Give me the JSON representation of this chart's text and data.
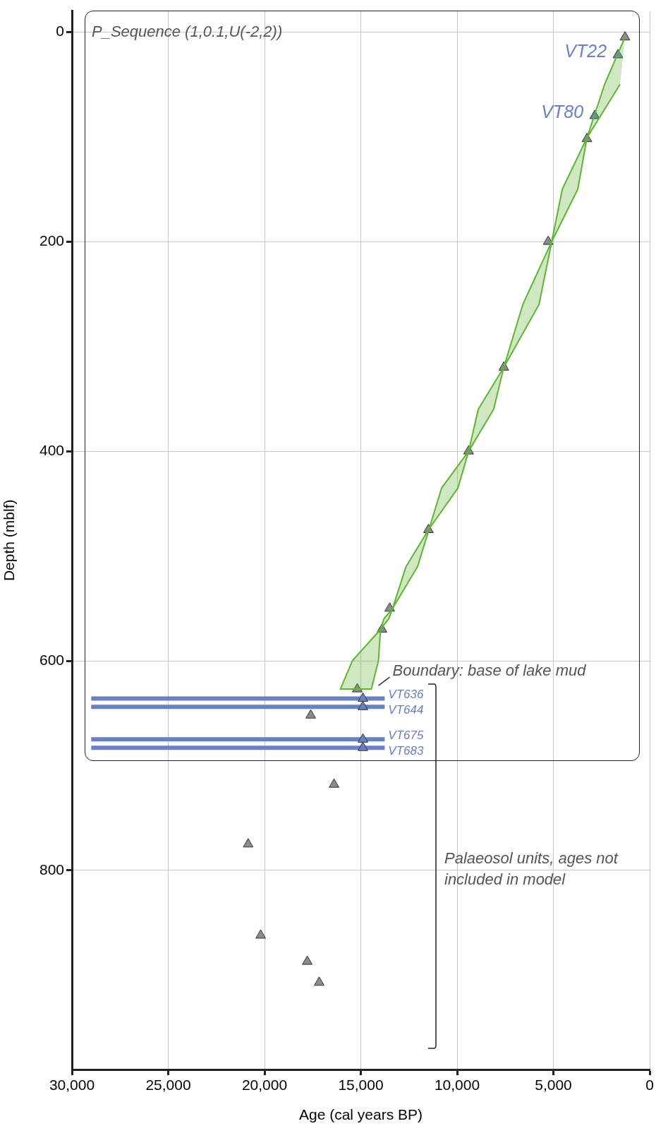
{
  "chart_data": {
    "type": "scatter",
    "xlabel": "Age (cal years BP)",
    "ylabel": "Depth (mblf)",
    "xlim": [
      30000,
      0
    ],
    "xticks": [
      {
        "value": 30000,
        "label": "30,000"
      },
      {
        "value": 25000,
        "label": "25,000"
      },
      {
        "value": 20000,
        "label": "20,000"
      },
      {
        "value": 15000,
        "label": "15,000"
      },
      {
        "value": 10000,
        "label": "10,000"
      },
      {
        "value": 5000,
        "label": "5,000"
      },
      0
    ],
    "ylim": [
      990,
      -20
    ],
    "yticks": [
      0,
      200,
      400,
      600,
      800
    ],
    "grid": true,
    "marker": "triangle",
    "series": [
      {
        "type": "area",
        "marker": "none",
        "color": "#5fb336",
        "x": [
          1280,
          2340,
          3256,
          4537,
          5085,
          6585,
          7573,
          8900,
          9400,
          10800,
          11450,
          12650,
          13350,
          13800,
          13975,
          15440,
          16060,
          14450,
          14085,
          13975,
          13550,
          13350,
          12050,
          11450,
          9950,
          9400,
          8100,
          7573,
          5744,
          5085,
          3732,
          3256,
          1537
        ],
        "values": [
          5,
          50,
          101,
          150,
          200,
          260,
          320,
          360,
          400,
          435,
          474,
          510,
          550,
          560,
          570,
          600,
          627,
          627,
          600,
          570,
          560,
          550,
          510,
          474,
          435,
          400,
          360,
          320,
          260,
          200,
          150,
          101,
          50
        ]
      },
      {
        "color": "#8c8c8c",
        "x": [
          1280,
          3256,
          5268,
          7573,
          9400,
          11488,
          13500,
          13900,
          15183,
          17600,
          16390,
          20850,
          20200,
          17780,
          17160
        ],
        "values": [
          5,
          102,
          200,
          320,
          400,
          475,
          550,
          570,
          627,
          652,
          718,
          775,
          862,
          887,
          907
        ]
      },
      {
        "name": "VT22",
        "color": "#6a80c0",
        "x": [
          1646
        ],
        "values": [
          22
        ]
      },
      {
        "name": "VT80",
        "color": "#6a80c0",
        "x": [
          2854
        ],
        "values": [
          80
        ]
      },
      {
        "name": "VT636",
        "color": "#6a80c0",
        "x": [
          14890
        ],
        "values": [
          636
        ],
        "xerrors": [
          [
            13760,
            29000
          ]
        ]
      },
      {
        "name": "VT644",
        "color": "#6a80c0",
        "x": [
          14890
        ],
        "values": [
          644
        ],
        "xerrors": [
          [
            13760,
            29000
          ]
        ]
      },
      {
        "name": "VT675",
        "color": "#6a80c0",
        "x": [
          14890
        ],
        "values": [
          675
        ],
        "xerrors": [
          [
            13760,
            29000
          ]
        ]
      },
      {
        "name": "VT683",
        "color": "#6a80c0",
        "x": [
          14890
        ],
        "values": [
          683
        ],
        "xerrors": [
          [
            13760,
            29000
          ]
        ]
      }
    ],
    "annotations": [
      "P_Sequence (1,0.1,U(-2,2))",
      "Palaeosol units, ages not included in model",
      {
        "text": "Boundary: base of lake mud",
        "x": 15183,
        "y": 627
      }
    ]
  }
}
